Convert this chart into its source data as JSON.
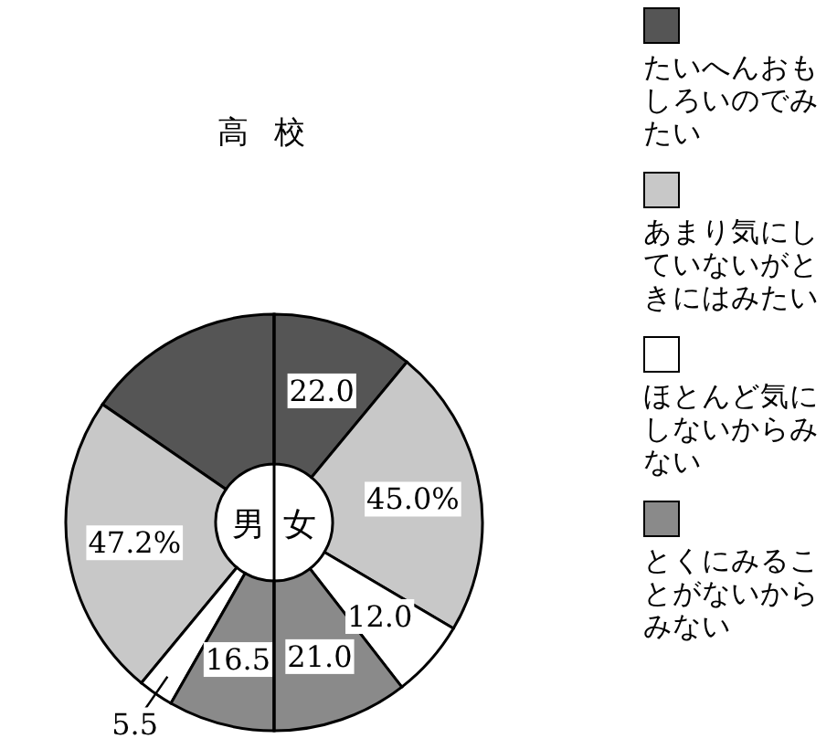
{
  "chart_data": [
    {
      "type": "donut",
      "title": "高校",
      "annotations": [
        "男"
      ],
      "categories": [
        null,
        null,
        null,
        null
      ],
      "colors": [
        "#555555",
        "#c8c8c8",
        "#ffffff",
        "#8a8a8a"
      ],
      "values": [
        30.8,
        47.2,
        5.5,
        16.5
      ],
      "value_labels": [
        null,
        "47.2%",
        "5.5",
        "16.5"
      ]
    },
    {
      "type": "donut",
      "annotations": [
        "女"
      ],
      "categories": [
        "たいへんおもしろいのでみたい",
        "あまり気にしていないがときにはみたい",
        "ほとんど気にしないからみない",
        "とくにみることがないからみない"
      ],
      "colors": [
        "#555555",
        "#c8c8c8",
        "#ffffff",
        "#8a8a8a"
      ],
      "values": [
        22.0,
        45.0,
        12.0,
        21.0
      ],
      "value_labels": [
        "22.0",
        "45.0%",
        "12.0",
        "21.0"
      ],
      "legend": "right"
    }
  ]
}
